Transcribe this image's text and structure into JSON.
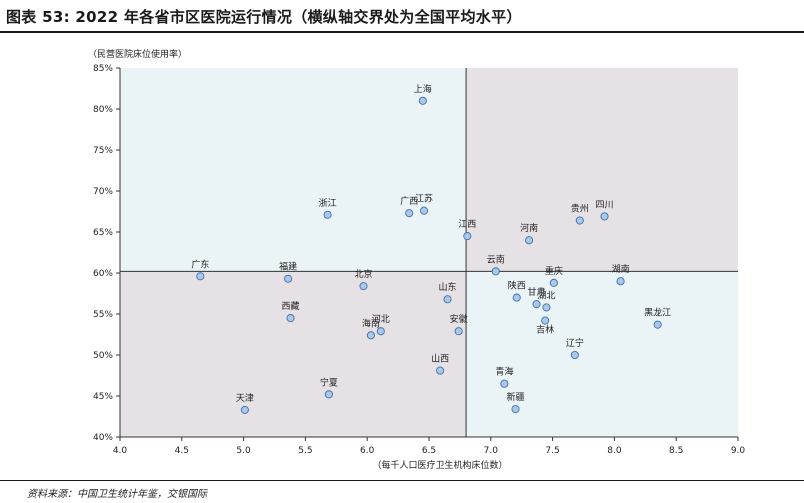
{
  "header": {
    "title": "图表 53: 2022 年各省市区医院运行情况（横纵轴交界处为全国平均水平）"
  },
  "footer": {
    "source": "资料来源：中国卫生统计年鉴，交银国际"
  },
  "chart_data": {
    "type": "scatter",
    "ylabel": "（民营医院床位使用率）",
    "xlabel": "（每千人口医疗卫生机构床位数）",
    "xlim": [
      4.0,
      9.0
    ],
    "ylim": [
      40,
      85
    ],
    "x_ticks": [
      "4.0",
      "4.5",
      "5.0",
      "5.5",
      "6.0",
      "6.5",
      "7.0",
      "7.5",
      "8.0",
      "8.5",
      "9.0"
    ],
    "y_ticks": [
      "40%",
      "45%",
      "50%",
      "55%",
      "60%",
      "65%",
      "70%",
      "75%",
      "80%",
      "85%"
    ],
    "reference": {
      "x": 6.8,
      "y": 60.2
    },
    "quadrant_colors": {
      "top_left": "#eaf3f6",
      "top_right": "#e6e1e4",
      "bottom_left": "#e6e1e4",
      "bottom_right": "#eaf3f6"
    },
    "point_color": "#a9c8ea",
    "point_stroke": "#3f6fa8",
    "grid": false,
    "points": [
      {
        "label": "上海",
        "x": 6.45,
        "y": 81.0
      },
      {
        "label": "浙江",
        "x": 5.68,
        "y": 67.1
      },
      {
        "label": "广西",
        "x": 6.34,
        "y": 67.3
      },
      {
        "label": "江苏",
        "x": 6.46,
        "y": 67.6
      },
      {
        "label": "四川",
        "x": 7.92,
        "y": 66.9
      },
      {
        "label": "贵州",
        "x": 7.72,
        "y": 66.4
      },
      {
        "label": "江西",
        "x": 6.81,
        "y": 64.5
      },
      {
        "label": "河南",
        "x": 7.31,
        "y": 64.0
      },
      {
        "label": "广东",
        "x": 4.65,
        "y": 59.6
      },
      {
        "label": "福建",
        "x": 5.36,
        "y": 59.3
      },
      {
        "label": "云南",
        "x": 7.04,
        "y": 60.2
      },
      {
        "label": "重庆",
        "x": 7.51,
        "y": 58.8
      },
      {
        "label": "湖南",
        "x": 8.05,
        "y": 59.0
      },
      {
        "label": "北京",
        "x": 5.97,
        "y": 58.4
      },
      {
        "label": "山东",
        "x": 6.65,
        "y": 56.8
      },
      {
        "label": "陕西",
        "x": 7.21,
        "y": 57.0
      },
      {
        "label": "甘肃",
        "x": 7.37,
        "y": 56.2
      },
      {
        "label": "湖北",
        "x": 7.45,
        "y": 55.8
      },
      {
        "label": "吉林",
        "x": 7.44,
        "y": 54.2
      },
      {
        "label": "黑龙江",
        "x": 8.35,
        "y": 53.7
      },
      {
        "label": "西藏",
        "x": 5.38,
        "y": 54.5
      },
      {
        "label": "河北",
        "x": 6.11,
        "y": 52.9
      },
      {
        "label": "海南",
        "x": 6.03,
        "y": 52.4
      },
      {
        "label": "安徽",
        "x": 6.74,
        "y": 52.9
      },
      {
        "label": "辽宁",
        "x": 7.68,
        "y": 50.0
      },
      {
        "label": "山西",
        "x": 6.59,
        "y": 48.1
      },
      {
        "label": "青海",
        "x": 7.11,
        "y": 46.5
      },
      {
        "label": "宁夏",
        "x": 5.69,
        "y": 45.2
      },
      {
        "label": "新疆",
        "x": 7.2,
        "y": 43.4
      },
      {
        "label": "天津",
        "x": 5.01,
        "y": 43.3
      }
    ]
  }
}
